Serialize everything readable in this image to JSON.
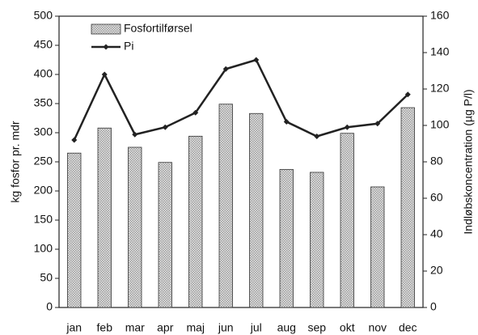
{
  "chart_data": {
    "type": "bar-line",
    "categories": [
      "jan",
      "feb",
      "mar",
      "apr",
      "maj",
      "jun",
      "jul",
      "aug",
      "sep",
      "okt",
      "nov",
      "dec"
    ],
    "series": [
      {
        "name": "Fosfortilførsel",
        "type": "bar",
        "color": "#9a9a9a",
        "values": [
          265,
          308,
          275,
          249,
          294,
          349,
          333,
          237,
          232,
          299,
          207,
          343
        ]
      },
      {
        "name": "Pi",
        "type": "line",
        "axis": "y2",
        "color": "#222222",
        "values": [
          92,
          128,
          95,
          99,
          107,
          131,
          136,
          102,
          94,
          99,
          101,
          117
        ]
      }
    ],
    "ylabel": "kg fosfor pr. mdr",
    "y2label": "Indløbskoncentration (µg P/l)",
    "ylim": [
      0,
      500
    ],
    "yticks": [
      0,
      50,
      100,
      150,
      200,
      250,
      300,
      350,
      400,
      450,
      500
    ],
    "y2lim": [
      0,
      160
    ],
    "y2ticks": [
      0,
      20,
      40,
      60,
      80,
      100,
      120,
      140,
      160
    ],
    "legend": "upper left",
    "grid": false
  }
}
